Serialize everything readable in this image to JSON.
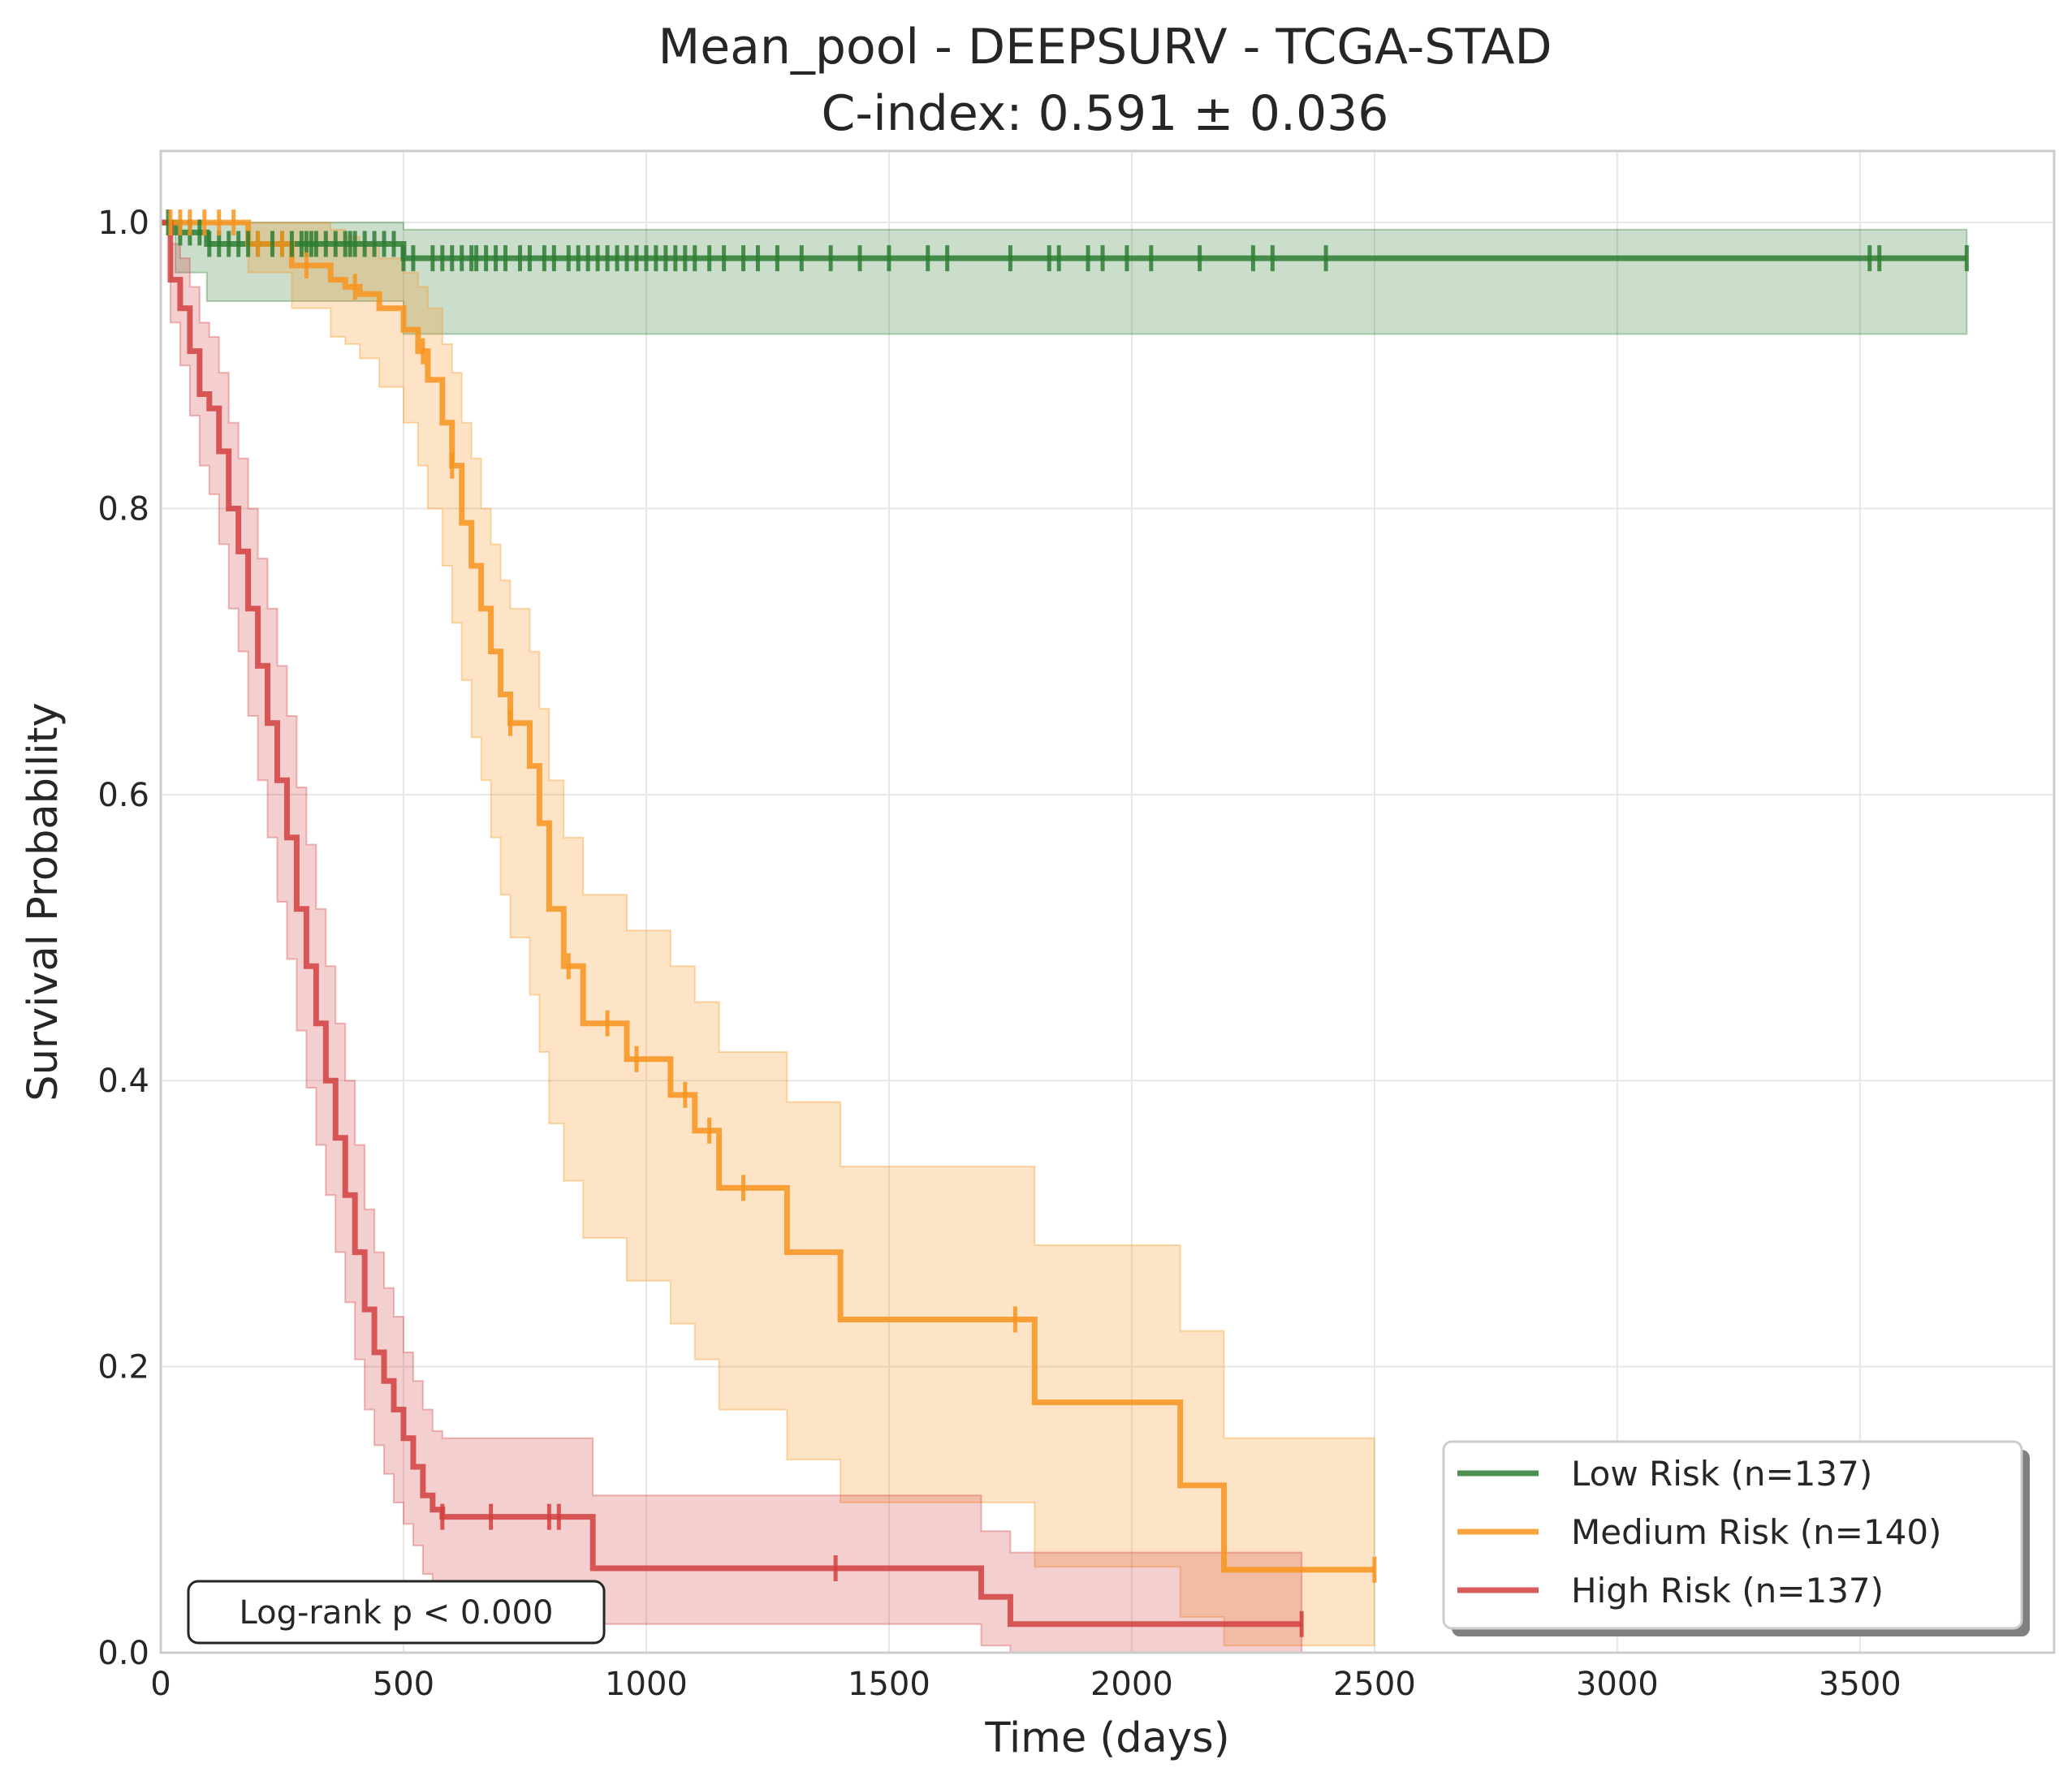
{
  "chart_data": {
    "type": "line",
    "title": "Mean_pool - DEEPSURV - TCGA-STAD",
    "subtitle": "C-index: 0.591 ± 0.036",
    "xlabel": "Time (days)",
    "ylabel": "Survival Probability",
    "xlim": [
      0,
      3900
    ],
    "ylim": [
      0,
      1.05
    ],
    "x_ticks": [
      0,
      500,
      1000,
      1500,
      2000,
      2500,
      3000,
      3500
    ],
    "y_ticks": [
      0.0,
      0.2,
      0.4,
      0.6,
      0.8,
      1.0
    ],
    "x_tick_labels": [
      "0",
      "500",
      "1000",
      "1500",
      "2000",
      "2500",
      "3000",
      "3500"
    ],
    "y_tick_labels": [
      "0.0",
      "0.2",
      "0.4",
      "0.6",
      "0.8",
      "1.0"
    ],
    "grid": true,
    "legend_position": "lower-right",
    "annotation": "Log-rank p < 0.000",
    "series": [
      {
        "name": "Low Risk (n=137)",
        "color": "#2e7d32",
        "x": [
          0,
          30,
          95,
          210,
          500,
          3720
        ],
        "y": [
          1.0,
          0.993,
          0.985,
          0.985,
          0.975,
          0.975
        ],
        "ci_lower": [
          1.0,
          0.965,
          0.945,
          0.945,
          0.922,
          0.922
        ],
        "ci_upper": [
          1.0,
          1.0,
          1.0,
          1.0,
          0.995,
          0.995
        ],
        "censor_x": [
          15,
          40,
          60,
          80,
          100,
          120,
          140,
          160,
          180,
          200,
          230,
          250,
          270,
          290,
          300,
          310,
          320,
          340,
          360,
          380,
          390,
          400,
          420,
          440,
          460,
          480,
          500,
          520,
          560,
          580,
          600,
          620,
          640,
          650,
          670,
          690,
          710,
          740,
          760,
          790,
          810,
          840,
          860,
          880,
          900,
          920,
          940,
          960,
          980,
          1000,
          1020,
          1040,
          1060,
          1080,
          1100,
          1130,
          1160,
          1200,
          1230,
          1270,
          1320,
          1380,
          1440,
          1500,
          1580,
          1620,
          1750,
          1830,
          1850,
          1910,
          1940,
          1990,
          2040,
          2140,
          2250,
          2290,
          2400,
          3520,
          3540,
          3720
        ]
      },
      {
        "name": "Medium Risk (n=140)",
        "color": "#f7941d",
        "x": [
          0,
          180,
          270,
          350,
          380,
          410,
          450,
          500,
          530,
          550,
          580,
          600,
          620,
          640,
          660,
          680,
          700,
          720,
          760,
          780,
          800,
          830,
          870,
          960,
          1050,
          1100,
          1150,
          1290,
          1400,
          1800,
          2100,
          2190,
          2500
        ],
        "y": [
          1.0,
          0.985,
          0.97,
          0.96,
          0.955,
          0.95,
          0.94,
          0.925,
          0.91,
          0.89,
          0.86,
          0.83,
          0.79,
          0.76,
          0.73,
          0.7,
          0.67,
          0.65,
          0.62,
          0.58,
          0.52,
          0.48,
          0.44,
          0.415,
          0.39,
          0.365,
          0.325,
          0.28,
          0.233,
          0.175,
          0.117,
          0.058,
          0.058
        ],
        "ci_lower": [
          1.0,
          0.965,
          0.94,
          0.92,
          0.915,
          0.905,
          0.885,
          0.86,
          0.83,
          0.8,
          0.76,
          0.72,
          0.68,
          0.64,
          0.61,
          0.57,
          0.53,
          0.5,
          0.46,
          0.42,
          0.37,
          0.33,
          0.29,
          0.26,
          0.23,
          0.205,
          0.17,
          0.135,
          0.105,
          0.06,
          0.025,
          0.005,
          0.005
        ],
        "ci_upper": [
          1.0,
          1.0,
          1.0,
          0.995,
          0.99,
          0.985,
          0.975,
          0.965,
          0.955,
          0.94,
          0.915,
          0.895,
          0.86,
          0.835,
          0.8,
          0.775,
          0.75,
          0.73,
          0.7,
          0.66,
          0.61,
          0.57,
          0.53,
          0.505,
          0.48,
          0.455,
          0.42,
          0.385,
          0.34,
          0.285,
          0.225,
          0.15,
          0.15
        ],
        "censor_x": [
          20,
          40,
          60,
          90,
          120,
          150,
          200,
          250,
          300,
          400,
          540,
          600,
          720,
          840,
          920,
          980,
          1080,
          1130,
          1200,
          1760,
          2500
        ]
      },
      {
        "name": "High Risk (n=137)",
        "color": "#d13f3f",
        "x": [
          0,
          20,
          40,
          60,
          80,
          100,
          120,
          140,
          160,
          180,
          200,
          220,
          240,
          260,
          280,
          300,
          320,
          340,
          360,
          380,
          400,
          420,
          440,
          460,
          480,
          500,
          520,
          540,
          560,
          580,
          890,
          1690,
          1750,
          2350
        ],
        "y": [
          1.0,
          0.96,
          0.94,
          0.91,
          0.88,
          0.87,
          0.84,
          0.8,
          0.77,
          0.73,
          0.69,
          0.65,
          0.61,
          0.57,
          0.52,
          0.48,
          0.44,
          0.4,
          0.36,
          0.32,
          0.28,
          0.24,
          0.21,
          0.19,
          0.17,
          0.15,
          0.13,
          0.11,
          0.1,
          0.095,
          0.059,
          0.039,
          0.02,
          0.02
        ],
        "ci_lower": [
          1.0,
          0.93,
          0.9,
          0.865,
          0.83,
          0.81,
          0.775,
          0.73,
          0.7,
          0.655,
          0.61,
          0.57,
          0.525,
          0.485,
          0.435,
          0.395,
          0.355,
          0.32,
          0.28,
          0.245,
          0.205,
          0.17,
          0.145,
          0.125,
          0.105,
          0.09,
          0.075,
          0.055,
          0.045,
          0.04,
          0.02,
          0.005,
          0.0,
          0.0
        ],
        "ci_upper": [
          1.0,
          0.985,
          0.975,
          0.955,
          0.93,
          0.92,
          0.895,
          0.86,
          0.835,
          0.8,
          0.765,
          0.73,
          0.69,
          0.655,
          0.605,
          0.565,
          0.52,
          0.48,
          0.44,
          0.4,
          0.355,
          0.31,
          0.28,
          0.255,
          0.235,
          0.21,
          0.19,
          0.17,
          0.155,
          0.15,
          0.11,
          0.085,
          0.07,
          0.07
        ],
        "censor_x": [
          580,
          680,
          800,
          820,
          1390,
          2350
        ]
      }
    ]
  }
}
